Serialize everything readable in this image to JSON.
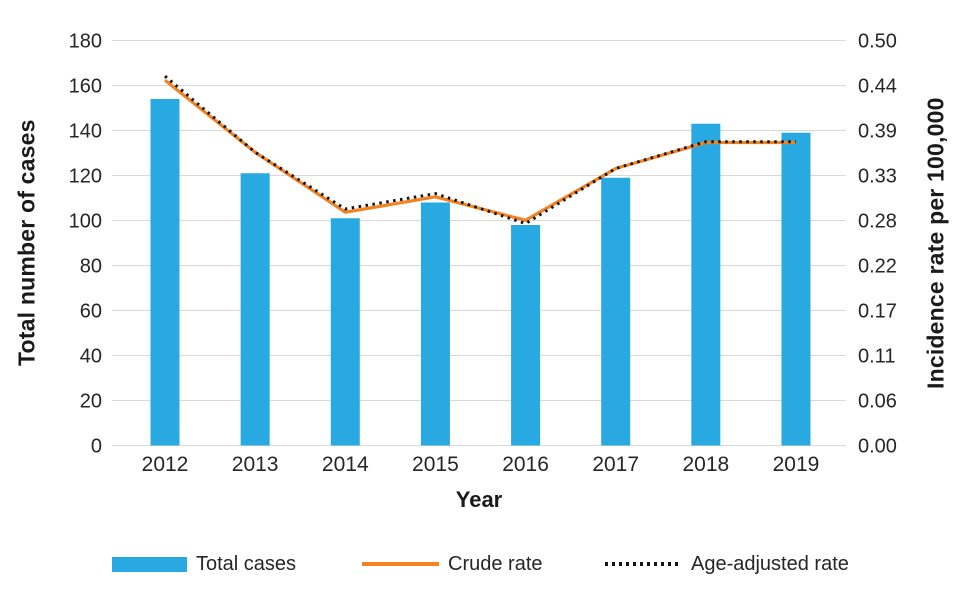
{
  "chart_data": {
    "type": "bar+line combo",
    "title": "",
    "xlabel": "Year",
    "ylabel_left": "Total number of cases",
    "ylabel_right": "Incidence rate per 100,000",
    "categories": [
      "2012",
      "2013",
      "2014",
      "2015",
      "2016",
      "2017",
      "2018",
      "2019"
    ],
    "bar_series": {
      "name": "Total cases",
      "axis": "left",
      "color": "#29a9e1",
      "values": [
        154,
        121,
        101,
        108,
        98,
        119,
        143,
        139
      ]
    },
    "line_series": [
      {
        "name": "Crude rate",
        "axis": "right",
        "color": "#f58220",
        "style": "solid",
        "values": [
          0.451,
          0.362,
          0.288,
          0.307,
          0.278,
          0.342,
          0.374,
          0.374
        ]
      },
      {
        "name": "Age-adjusted rate",
        "axis": "right",
        "color": "#141414",
        "style": "dotted",
        "values": [
          0.456,
          0.362,
          0.292,
          0.311,
          0.274,
          0.342,
          0.375,
          0.375
        ]
      }
    ],
    "left_axis": {
      "min": 0,
      "max": 180,
      "step": 20
    },
    "right_axis": {
      "min": 0.0,
      "max": 0.5,
      "step": 0.05,
      "decimals": 2
    },
    "grid": true,
    "grid_color": "#d9d9d9",
    "text_color": "#262626",
    "legend_position": "bottom"
  }
}
